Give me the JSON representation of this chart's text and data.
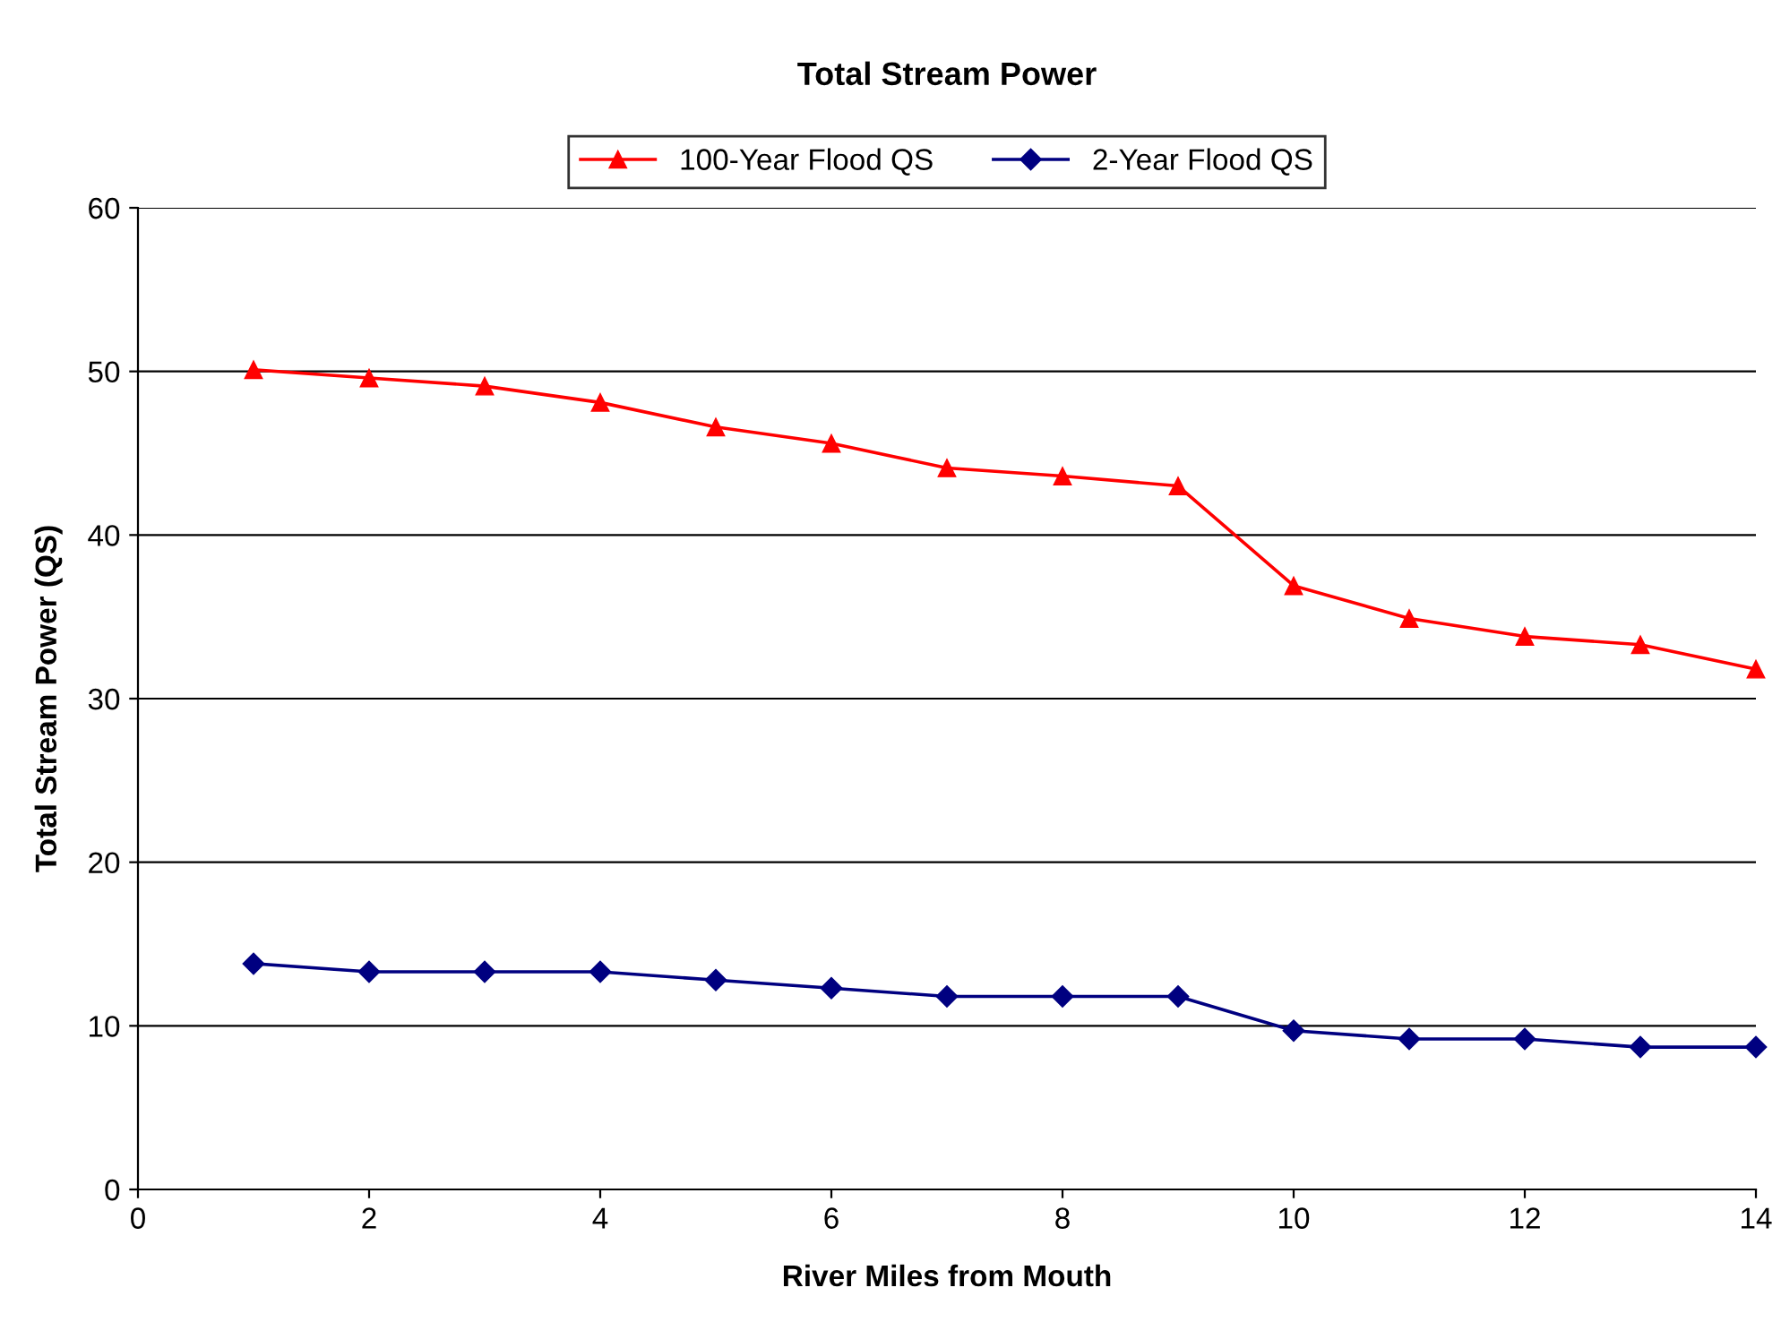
{
  "chart_data": {
    "type": "line",
    "title": "Total Stream Power",
    "xlabel": "River Miles from Mouth",
    "ylabel": "Total Stream Power (QS)",
    "x": [
      1,
      2,
      3,
      4,
      5,
      6,
      7,
      8,
      9,
      10,
      11,
      12,
      13,
      14
    ],
    "series": [
      {
        "name": "100-Year Flood QS",
        "color": "#ff0000",
        "marker": "triangle",
        "values": [
          50.1,
          49.6,
          49.1,
          48.1,
          46.6,
          45.6,
          44.1,
          43.6,
          43.0,
          36.9,
          34.9,
          33.8,
          33.3,
          31.8
        ]
      },
      {
        "name": "2-Year Flood QS",
        "color": "#000080",
        "marker": "diamond",
        "values": [
          13.8,
          13.3,
          13.3,
          13.3,
          12.8,
          12.3,
          11.8,
          11.8,
          11.8,
          9.7,
          9.2,
          9.2,
          8.7,
          8.7
        ]
      }
    ],
    "xlim": [
      0,
      14
    ],
    "xticks": [
      0,
      2,
      4,
      6,
      8,
      10,
      12,
      14
    ],
    "ylim": [
      0,
      60
    ],
    "yticks": [
      0,
      10,
      20,
      30,
      40,
      50,
      60
    ],
    "grid": "y",
    "legend": "top",
    "line_style": "solid"
  }
}
